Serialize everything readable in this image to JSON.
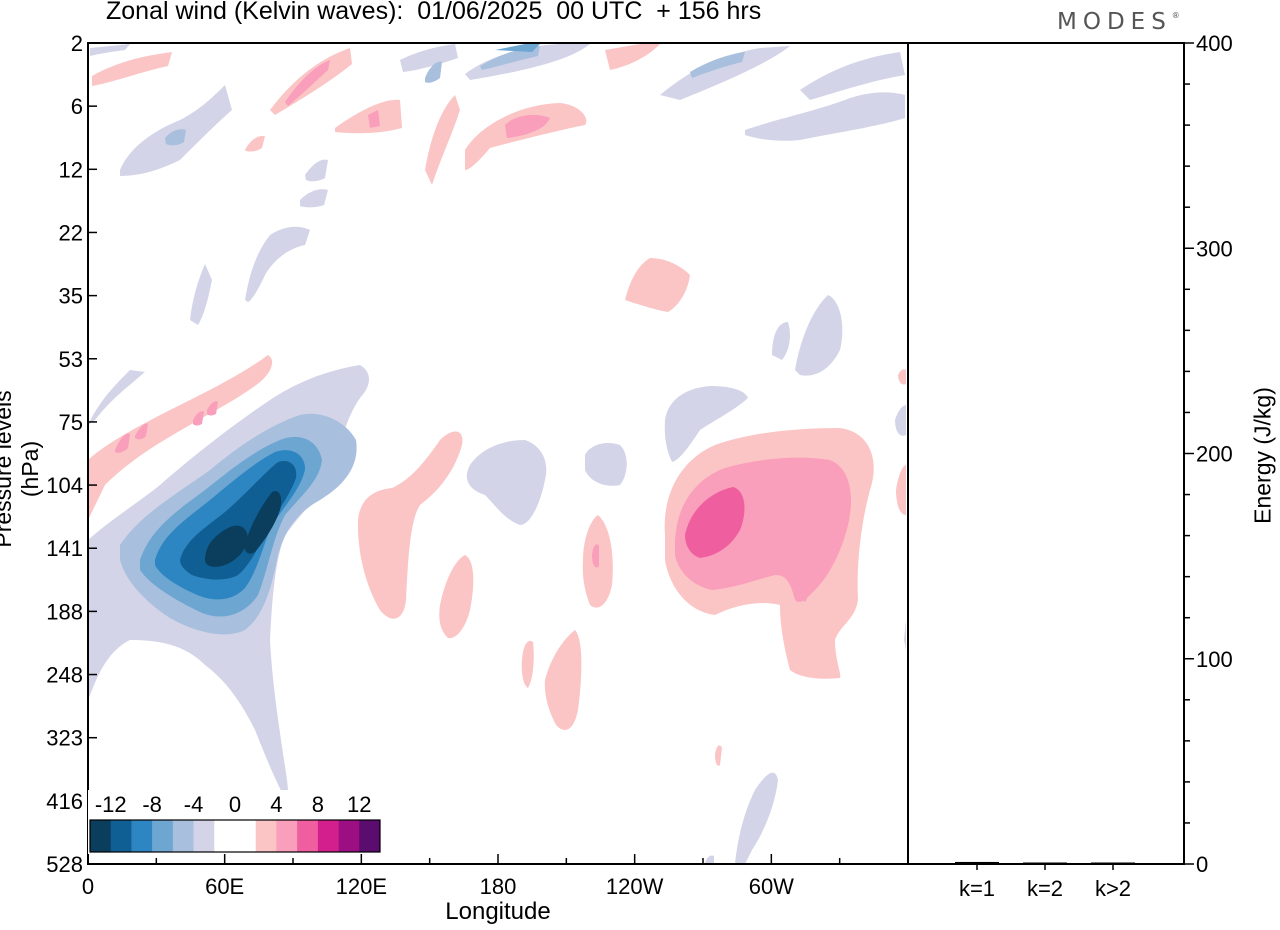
{
  "header": {
    "title": "Zonal wind (Kelvin waves):  01/06/2025  00 UTC  + 156 hrs",
    "brand": "MODES",
    "brand_mark": "®"
  },
  "chart_data": [
    {
      "type": "heatmap",
      "title": "Zonal wind (Kelvin waves):  01/06/2025  00 UTC  + 156 hrs",
      "xlabel": "Longitude",
      "ylabel": "Pressure levels (hPa)",
      "x_ticks": [
        "0",
        "60E",
        "120E",
        "180",
        "120W",
        "60W"
      ],
      "x_range": [
        0,
        360
      ],
      "y_ticks": [
        "2",
        "6",
        "12",
        "22",
        "35",
        "53",
        "75",
        "104",
        "141",
        "188",
        "248",
        "323",
        "416",
        "528"
      ],
      "y_scale": "model levels (top 2 hPa, bottom 528 hPa)",
      "colorbar": {
        "labels": [
          "-12",
          "-8",
          "-4",
          "0",
          "4",
          "8",
          "12"
        ],
        "colors": [
          "#0b3d5c",
          "#0f5f94",
          "#2d86c1",
          "#6ea6d2",
          "#a9bfde",
          "#d3d4e8",
          "#ffffff",
          "#ffffff",
          "#fbc5c5",
          "#f99ebb",
          "#ef5fa0",
          "#d21f8d",
          "#9c0f82",
          "#5a0c6f"
        ]
      },
      "features": [
        {
          "label": "negative core",
          "lon": 60,
          "pressure_hPa": 141,
          "value": -12
        },
        {
          "label": "positive core",
          "lon": 280,
          "pressure_hPa": 141,
          "value": 8
        }
      ]
    },
    {
      "type": "bar",
      "ylabel": "Energy (J/kg)",
      "categories": [
        "k=1",
        "k=2",
        "k>2"
      ],
      "values": [
        1,
        0.5,
        0.5
      ],
      "ylim": [
        0,
        400
      ],
      "y_ticks": [
        "0",
        "100",
        "200",
        "300",
        "400"
      ]
    }
  ]
}
